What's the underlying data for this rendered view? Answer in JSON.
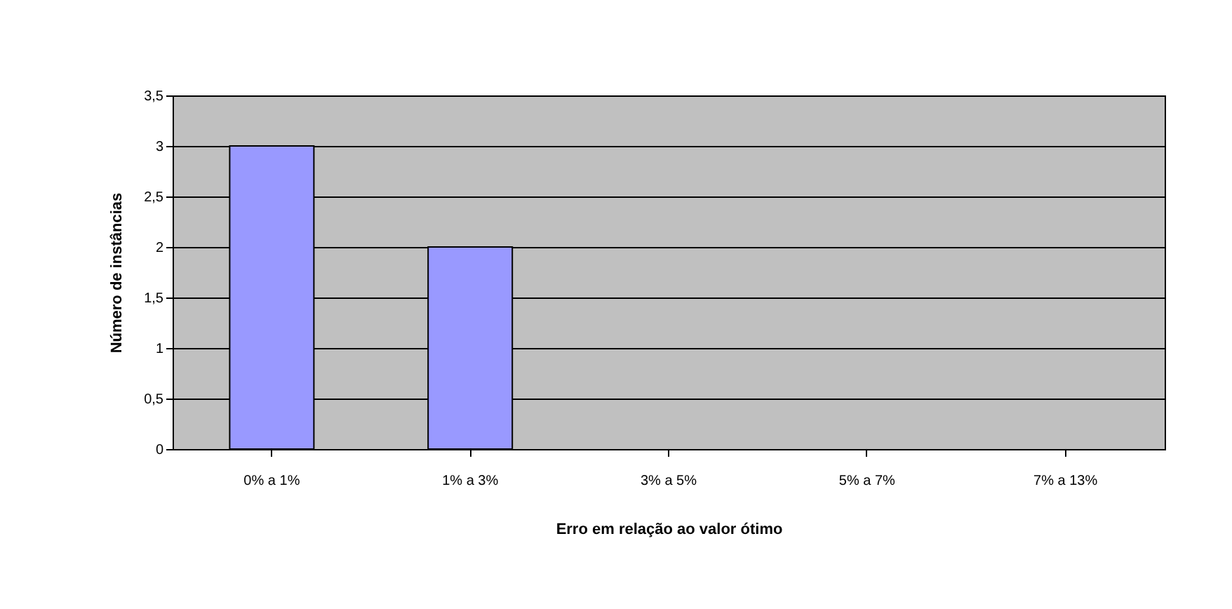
{
  "chart_data": {
    "type": "bar",
    "xlabel": "Erro em relação ao valor ótimo",
    "ylabel": "Número de instâncias",
    "categories": [
      "0% a 1%",
      "1% a 3%",
      "3% a 5%",
      "5% a 7%",
      "7% a 13%"
    ],
    "values": [
      3,
      2,
      0,
      0,
      0
    ],
    "color": "#9999ff",
    "ylim": [
      0,
      3.5
    ],
    "yticks": [
      0,
      {
        "value": 0.5,
        "label": "0,5"
      },
      1,
      {
        "value": 1.5,
        "label": "1,5"
      },
      2,
      {
        "value": 2.5,
        "label": "2,5"
      },
      3,
      {
        "value": 3.5,
        "label": "3,5"
      }
    ],
    "grid": "y"
  }
}
